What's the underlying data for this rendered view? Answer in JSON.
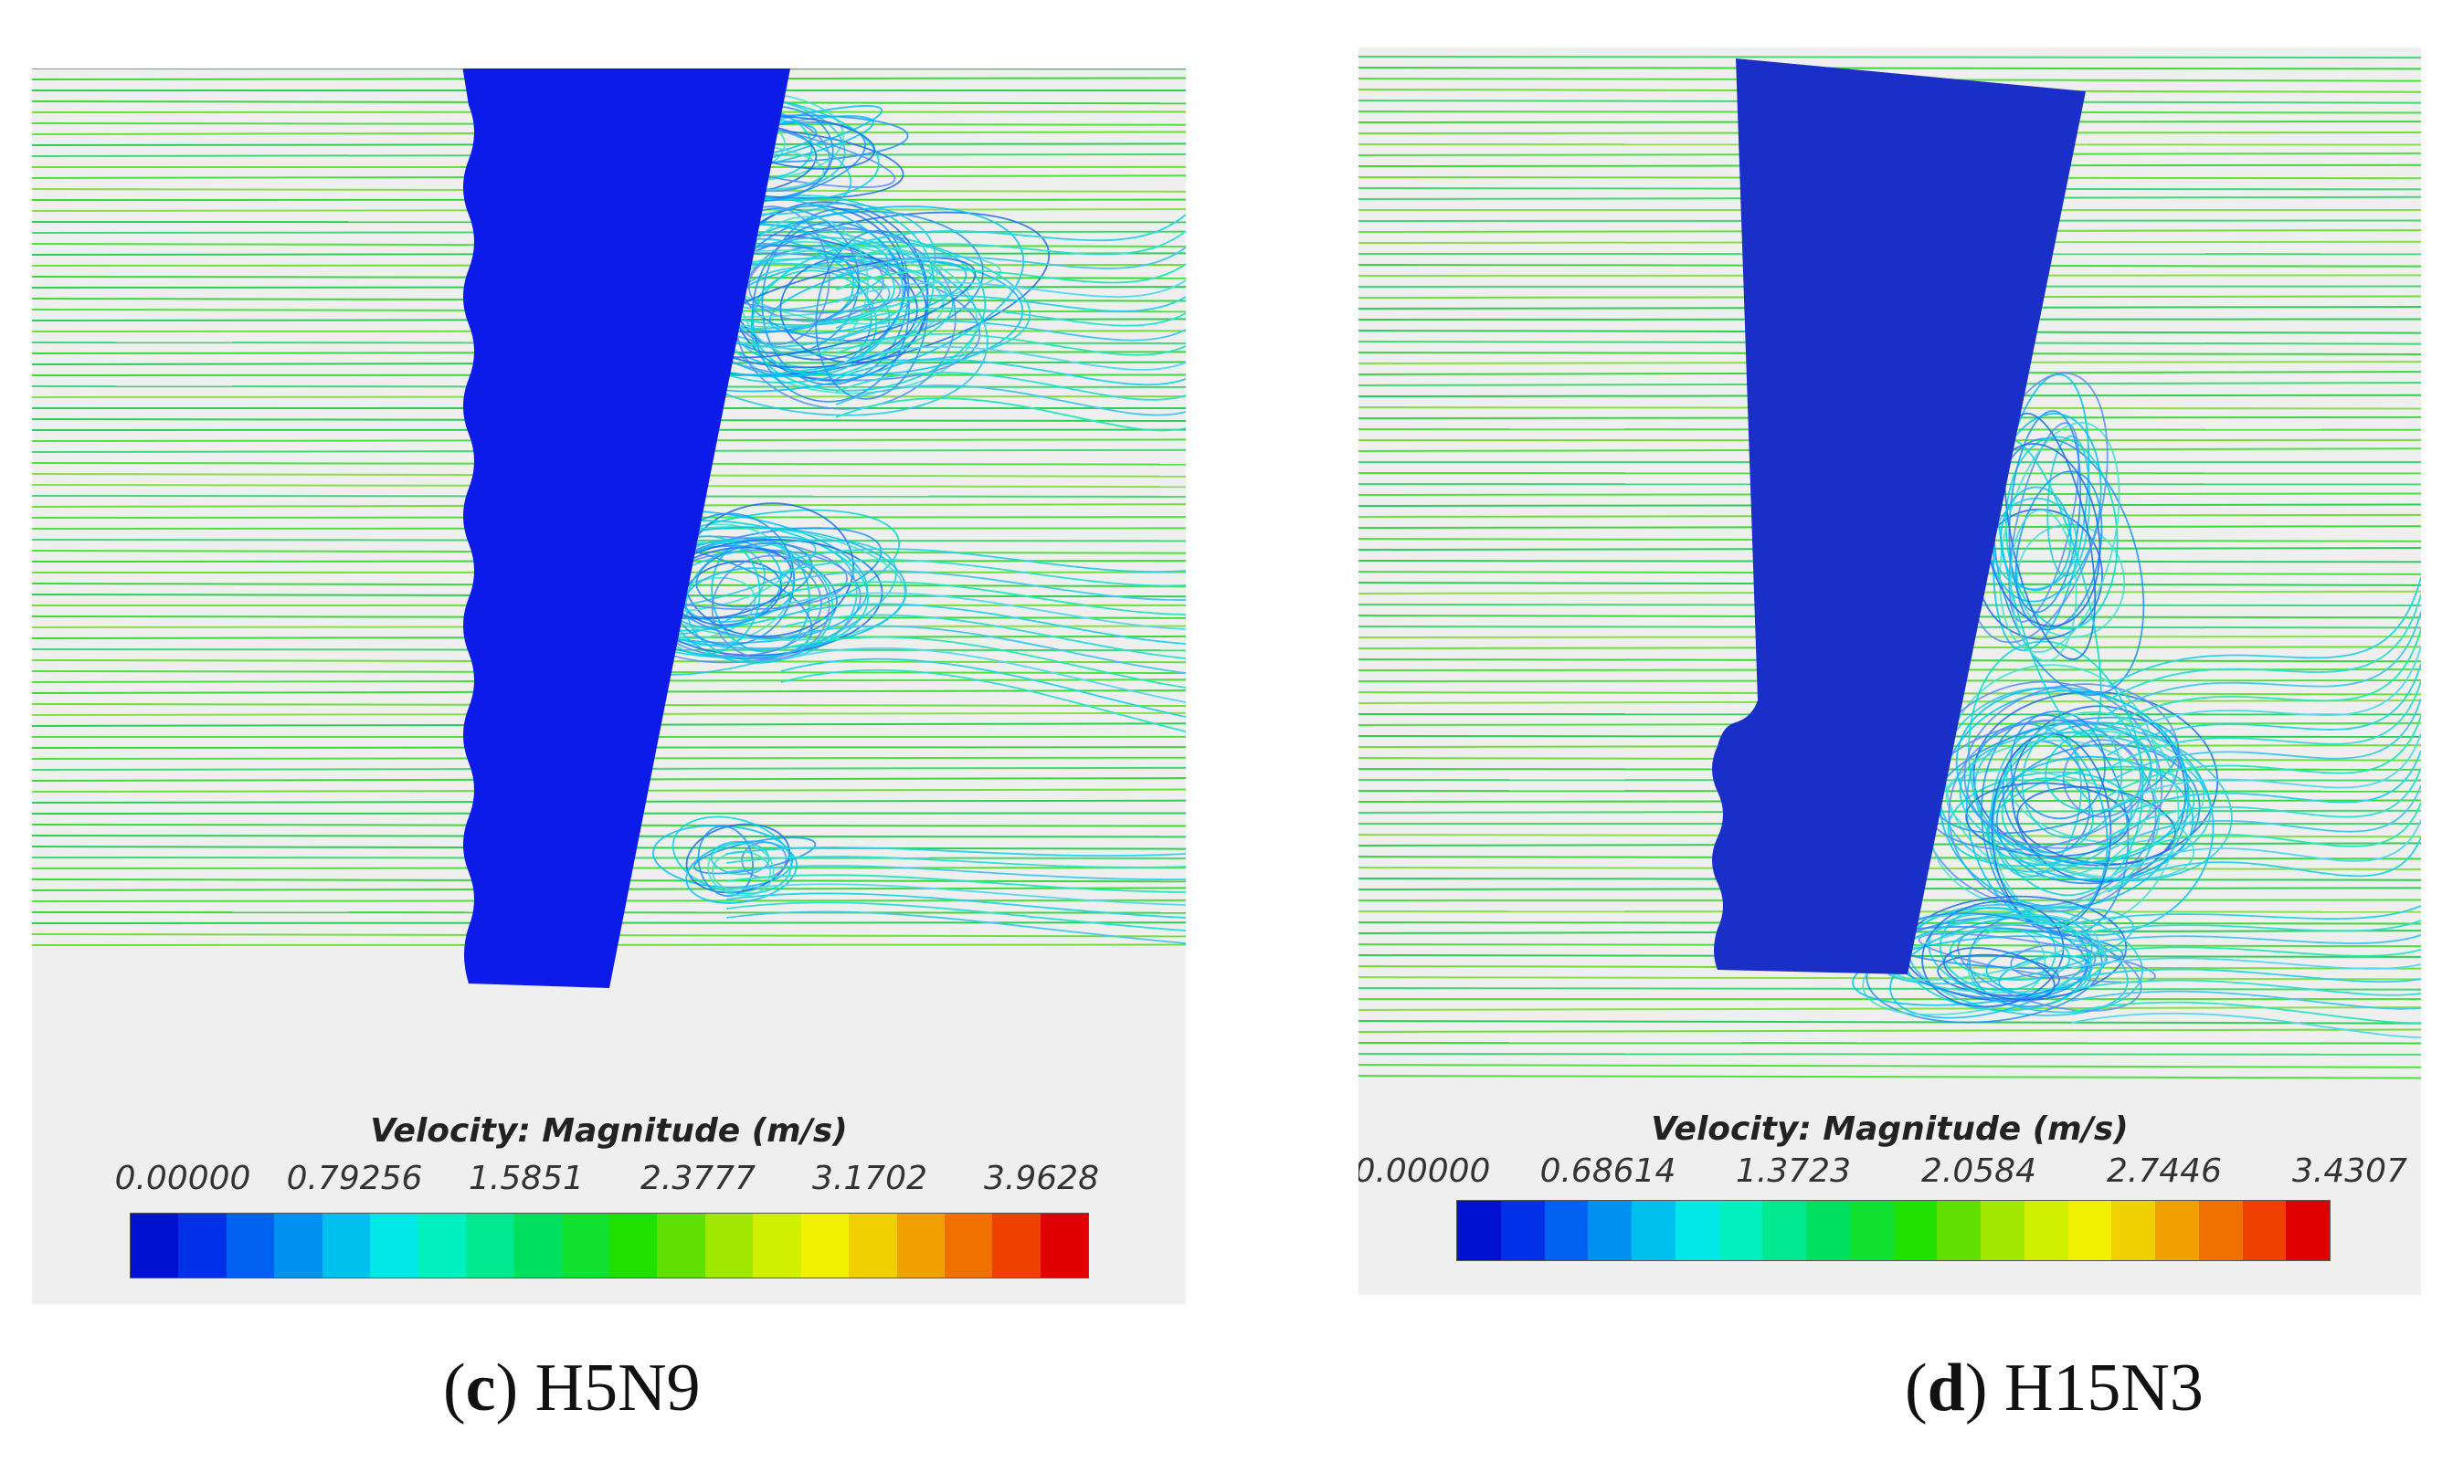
{
  "panels": [
    {
      "id": "c",
      "colorbar": {
        "title": "Velocity: Magnitude (m/s)",
        "ticks": [
          "0.00000",
          "0.79256",
          "1.5851",
          "2.3777",
          "3.1702",
          "3.9628"
        ]
      },
      "caption": {
        "letter": "c",
        "label": "H5N9"
      },
      "blade_color": "#0c1be8"
    },
    {
      "id": "d",
      "colorbar": {
        "title": "Velocity: Magnitude (m/s)",
        "ticks": [
          "0.00000",
          "0.68614",
          "1.3723",
          "2.0584",
          "2.7446",
          "3.4307"
        ]
      },
      "caption": {
        "letter": "d",
        "label": "H15N3"
      },
      "blade_color": "#1a2fc8"
    }
  ],
  "colormap": [
    "#0010d0",
    "#0030e8",
    "#0060f0",
    "#0090f0",
    "#00c0f0",
    "#00e8e8",
    "#00f0c0",
    "#00e890",
    "#00e060",
    "#10e030",
    "#20e000",
    "#60e000",
    "#a0e800",
    "#d0f000",
    "#f0f000",
    "#f0d000",
    "#f0a000",
    "#f07000",
    "#f04000",
    "#e00000"
  ]
}
